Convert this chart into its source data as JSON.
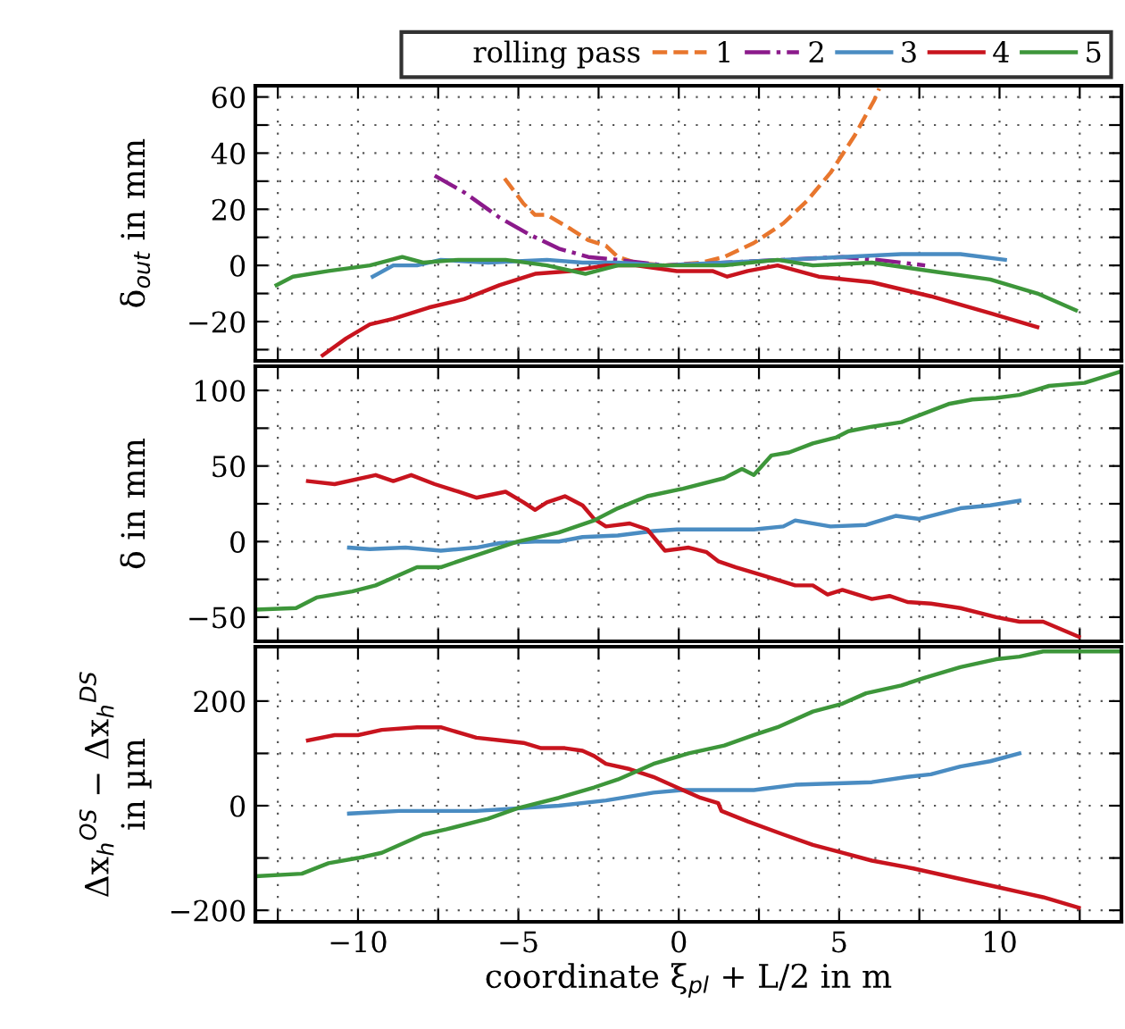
{
  "chart_data": [
    {
      "type": "line",
      "ylabel": "δ$_{out}$ in mm",
      "legend_title": "rolling pass",
      "legend": "top",
      "grid": true,
      "tick_labels": "y",
      "xlim": [
        -13.2,
        13.8
      ],
      "xticks": [
        {
          "value": -12.5,
          "label": null
        },
        {
          "value": -10,
          "label": null
        },
        {
          "value": -7.5,
          "label": null
        },
        {
          "value": -5,
          "label": null
        },
        {
          "value": -2.5,
          "label": null
        },
        {
          "value": 0,
          "label": null
        },
        {
          "value": 2.5,
          "label": null
        },
        {
          "value": 5,
          "label": null
        },
        {
          "value": 7.5,
          "label": null
        },
        {
          "value": 10,
          "label": null
        },
        {
          "value": 12.5,
          "label": null
        }
      ],
      "ylim": [
        -34,
        64
      ],
      "yticks": [
        {
          "value": -30,
          "label": null
        },
        {
          "value": -20,
          "label": "−20"
        },
        {
          "value": -10,
          "label": null
        },
        0,
        {
          "value": 10,
          "label": null
        },
        20,
        {
          "value": 30,
          "label": null
        },
        40,
        {
          "value": 50,
          "label": null
        },
        60
      ],
      "series": [
        {
          "name": "1",
          "color": "#e8762d",
          "line_style": "dashed",
          "x": [
            -5.43,
            -4.84,
            -4.48,
            -4.11,
            -3.37,
            -2.82,
            -2.27,
            -1.9,
            -1.34,
            -0.43,
            0.68,
            1.42,
            2.34,
            3.26,
            4.0,
            4.73,
            5.47,
            6.1,
            6.25
          ],
          "values": [
            31,
            22,
            18,
            18,
            13,
            9,
            7,
            3,
            1,
            0,
            1,
            3,
            8,
            15,
            23,
            33,
            46,
            59,
            63
          ]
        },
        {
          "name": "2",
          "color": "#8b1a8b",
          "line_style": "dashdot",
          "x": [
            -7.61,
            -6.69,
            -5.58,
            -4.66,
            -3.74,
            -2.82,
            -1.9,
            -0.43,
            1.42,
            3.26,
            5.1,
            6.2,
            7.68
          ],
          "values": [
            32,
            26,
            17,
            11,
            6,
            3,
            2,
            0,
            1,
            2,
            3,
            2,
            0
          ]
        },
        {
          "name": "3",
          "color": "#4a8cc2",
          "line_style": "solid",
          "x": [
            -9.54,
            -8.9,
            -8.16,
            -7.42,
            -5.95,
            -4.11,
            -3.0,
            -1.9,
            -0.43,
            1.42,
            3.26,
            5.1,
            6.94,
            8.78,
            10.17
          ],
          "values": [
            -4,
            0,
            0,
            2,
            1,
            2,
            1,
            1,
            0,
            1,
            2,
            3,
            4,
            4,
            2
          ]
        },
        {
          "name": "4",
          "color": "#c8141e",
          "line_style": "solid",
          "x": [
            -11.1,
            -10.37,
            -9.63,
            -8.9,
            -7.79,
            -6.69,
            -5.58,
            -4.48,
            -3.37,
            -2.27,
            -1.34,
            -0.06,
            1.05,
            1.51,
            2.15,
            3.08,
            4.36,
            6.02,
            7.86,
            9.71,
            11.18
          ],
          "values": [
            -32,
            -26,
            -21,
            -19,
            -15,
            -12,
            -7,
            -3,
            -2,
            0,
            0,
            -2,
            -2,
            -4,
            -2,
            0,
            -4,
            -6,
            -11,
            -17,
            -22
          ]
        },
        {
          "name": "5",
          "color": "#3d963a",
          "line_style": "solid",
          "x": [
            -12.54,
            -12.03,
            -10.92,
            -9.63,
            -8.62,
            -7.97,
            -6.87,
            -5.4,
            -4.11,
            -2.91,
            -1.9,
            -0.43,
            1.42,
            3.08,
            4.18,
            6.02,
            7.86,
            9.71,
            11.18,
            12.38
          ],
          "values": [
            -7,
            -4,
            -2,
            0,
            3,
            1,
            2,
            2,
            0,
            -3,
            0,
            0,
            0,
            2,
            0,
            1,
            -2,
            -5,
            -10,
            -16
          ]
        }
      ]
    },
    {
      "type": "line",
      "ylabel": "δ in mm",
      "grid": true,
      "tick_labels": "y",
      "xlim": [
        -13.2,
        13.8
      ],
      "xticks": [
        {
          "value": -12.5,
          "label": null
        },
        {
          "value": -10,
          "label": null
        },
        {
          "value": -7.5,
          "label": null
        },
        {
          "value": -5,
          "label": null
        },
        {
          "value": -2.5,
          "label": null
        },
        {
          "value": 0,
          "label": null
        },
        {
          "value": 2.5,
          "label": null
        },
        {
          "value": 5,
          "label": null
        },
        {
          "value": 7.5,
          "label": null
        },
        {
          "value": 10,
          "label": null
        },
        {
          "value": 12.5,
          "label": null
        }
      ],
      "ylim": [
        -66,
        116
      ],
      "yticks": [
        {
          "value": -50,
          "label": "−50"
        },
        {
          "value": -25,
          "label": null
        },
        0,
        {
          "value": 25,
          "label": null
        },
        50,
        {
          "value": 75,
          "label": null
        },
        100
      ],
      "series": [
        {
          "color": "#4a8cc2",
          "line_style": "solid",
          "x": [
            -10.28,
            -9.63,
            -8.52,
            -7.42,
            -6.31,
            -5.58,
            -4.48,
            -3.74,
            -3.0,
            -1.9,
            -0.79,
            -0.06,
            2.34,
            3.26,
            3.63,
            4.73,
            5.84,
            6.76,
            7.5,
            8.78,
            9.71,
            10.62
          ],
          "values": [
            -4,
            -5,
            -4,
            -6,
            -4,
            -1,
            0,
            0,
            3,
            4,
            7,
            8,
            8,
            10,
            14,
            10,
            11,
            17,
            15,
            22,
            24,
            27
          ]
        },
        {
          "color": "#c8141e",
          "line_style": "solid",
          "x": [
            -11.56,
            -10.73,
            -9.45,
            -8.9,
            -8.34,
            -7.61,
            -6.87,
            -6.31,
            -5.4,
            -4.84,
            -4.48,
            -4.11,
            -3.55,
            -3.0,
            -2.64,
            -2.27,
            -1.53,
            -0.98,
            -0.43,
            0.31,
            0.87,
            1.23,
            1.78,
            2.71,
            3.63,
            4.18,
            4.64,
            5.1,
            6.02,
            6.57,
            7.13,
            7.86,
            8.78,
            9.89,
            10.62,
            11.36,
            12.47
          ],
          "values": [
            40,
            38,
            44,
            40,
            44,
            38,
            33,
            29,
            33,
            26,
            21,
            26,
            30,
            24,
            15,
            10,
            12,
            8,
            -6,
            -4,
            -7,
            -13,
            -17,
            -23,
            -29,
            -29,
            -35,
            -32,
            -38,
            -36,
            -40,
            -41,
            -44,
            -50,
            -53,
            -53,
            -63
          ]
        },
        {
          "color": "#3d963a",
          "line_style": "solid",
          "x": [
            -13.2,
            -11.93,
            -11.29,
            -10.18,
            -9.45,
            -8.16,
            -7.42,
            -6.31,
            -5.03,
            -3.74,
            -2.64,
            -1.9,
            -0.98,
            0.13,
            1.42,
            1.97,
            2.34,
            2.89,
            3.44,
            4.18,
            4.92,
            5.29,
            6.02,
            6.94,
            8.41,
            9.15,
            9.89,
            10.62,
            11.55,
            12.65,
            13.7
          ],
          "values": [
            -45,
            -44,
            -37,
            -33,
            -29,
            -17,
            -17,
            -9,
            0,
            6,
            14,
            22,
            30,
            35,
            42,
            48,
            44,
            57,
            59,
            65,
            69,
            73,
            76,
            79,
            91,
            94,
            95,
            97,
            103,
            105,
            112
          ]
        }
      ]
    },
    {
      "type": "line",
      "ylabel": "Δx$_{h}$$^{OS}$ − Δx$_{h}$$^{DS}$\nin µm",
      "xlabel": "coordinate ξ$_{pl}$ + L/2 in m",
      "grid": true,
      "xlim": [
        -13.2,
        13.8
      ],
      "xticks": [
        {
          "value": -12.5,
          "label": null
        },
        {
          "value": -10,
          "label": "−10"
        },
        {
          "value": -7.5,
          "label": null
        },
        {
          "value": -5,
          "label": "−5"
        },
        {
          "value": -2.5,
          "label": null
        },
        0,
        {
          "value": 2.5,
          "label": null
        },
        5,
        {
          "value": 7.5,
          "label": null
        },
        10,
        {
          "value": 12.5,
          "label": null
        }
      ],
      "ylim": [
        -222,
        304
      ],
      "yticks": [
        {
          "value": -200,
          "label": "−200"
        },
        {
          "value": -100,
          "label": null
        },
        0,
        {
          "value": 100,
          "label": null
        },
        200
      ],
      "series": [
        {
          "color": "#4a8cc2",
          "line_style": "solid",
          "x": [
            -10.28,
            -8.71,
            -6.31,
            -5.03,
            -3.74,
            -2.27,
            -0.79,
            0.13,
            2.34,
            3.63,
            6.02,
            7.13,
            7.86,
            8.78,
            9.71,
            10.62
          ],
          "values": [
            -15,
            -10,
            -10,
            -5,
            0,
            10,
            25,
            30,
            30,
            40,
            45,
            55,
            60,
            75,
            85,
            100
          ]
        },
        {
          "color": "#c8141e",
          "line_style": "solid",
          "x": [
            -11.56,
            -10.73,
            -10.0,
            -9.26,
            -8.16,
            -7.42,
            -6.31,
            -5.58,
            -4.84,
            -4.29,
            -3.55,
            -3.0,
            -2.64,
            -2.27,
            -1.53,
            -0.79,
            -0.06,
            0.68,
            1.23,
            1.33,
            2.15,
            3.26,
            4.18,
            5.1,
            6.02,
            7.31,
            8.78,
            9.89,
            10.62,
            11.36,
            12.47
          ],
          "values": [
            125,
            135,
            135,
            145,
            150,
            150,
            130,
            125,
            120,
            110,
            110,
            105,
            95,
            80,
            70,
            55,
            35,
            15,
            5,
            -10,
            -30,
            -55,
            -75,
            -90,
            -105,
            -120,
            -140,
            -155,
            -165,
            -175,
            -195
          ]
        },
        {
          "color": "#3d963a",
          "line_style": "solid",
          "x": [
            -13.2,
            -11.75,
            -10.92,
            -10.0,
            -9.26,
            -7.97,
            -7.24,
            -5.95,
            -5.03,
            -3.74,
            -2.64,
            -1.9,
            -0.79,
            0.31,
            1.42,
            2.34,
            3.08,
            4.18,
            5.1,
            5.84,
            6.94,
            7.68,
            8.78,
            9.89,
            10.62,
            11.36,
            12.47,
            13.7
          ],
          "values": [
            -135,
            -130,
            -110,
            -100,
            -90,
            -55,
            -45,
            -25,
            -5,
            15,
            35,
            50,
            80,
            100,
            115,
            135,
            150,
            180,
            195,
            215,
            230,
            245,
            265,
            280,
            285,
            295,
            295,
            295
          ]
        }
      ]
    }
  ]
}
